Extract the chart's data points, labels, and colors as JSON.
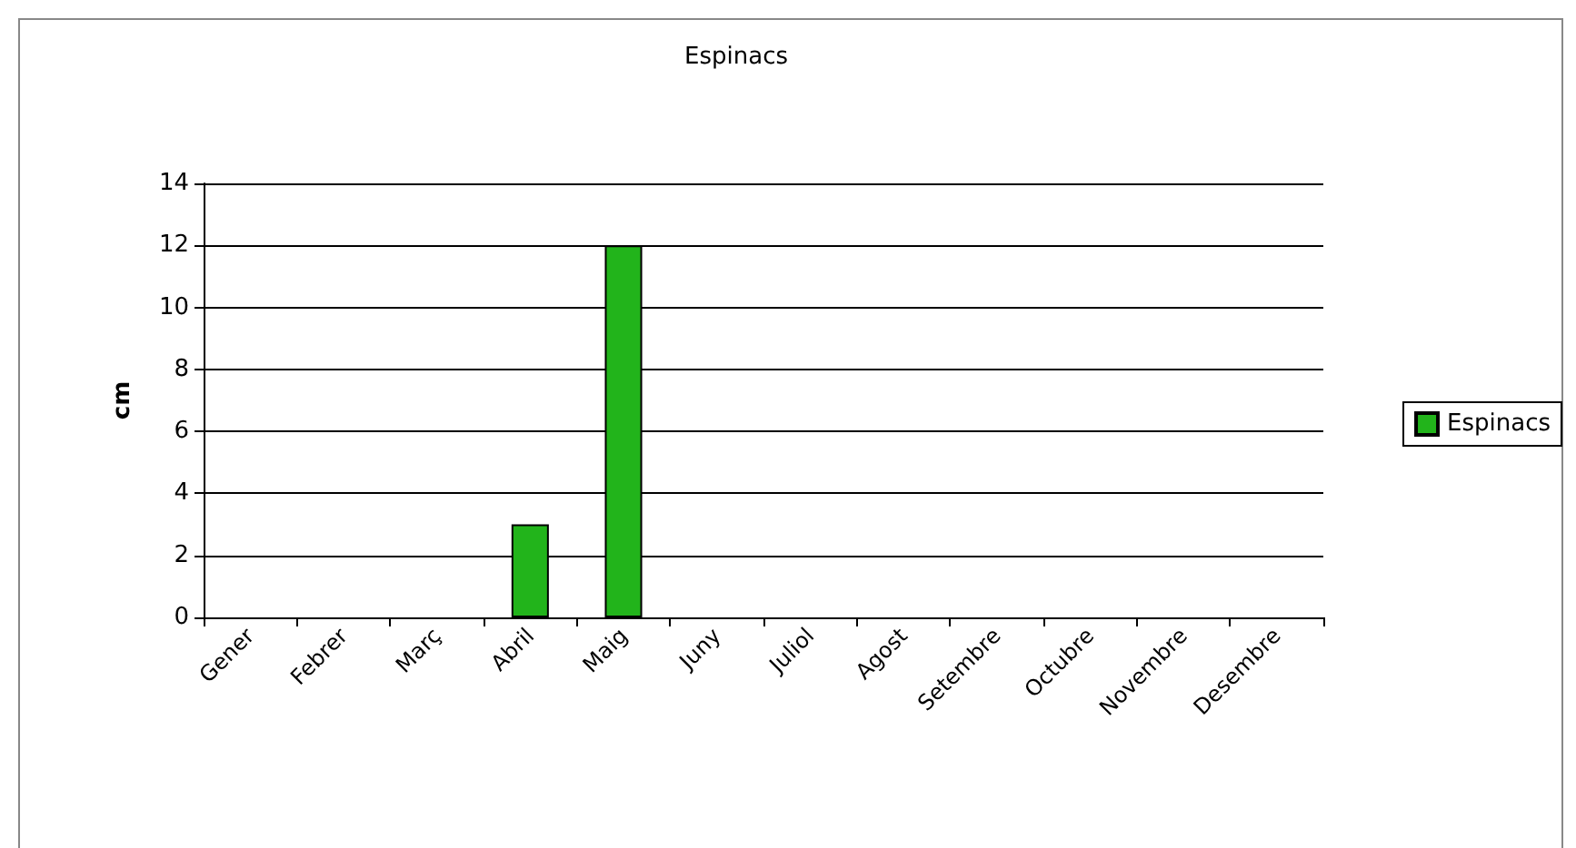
{
  "chart_data": {
    "type": "bar",
    "title": "Espinacs",
    "ylabel": "cm",
    "categories": [
      "Gener",
      "Febrer",
      "Març",
      "Abril",
      "Maig",
      "Juny",
      "Juliol",
      "Agost",
      "Setembre",
      "Octubre",
      "Novembre",
      "Desembre"
    ],
    "series": [
      {
        "name": "Espinacs",
        "color": "#22b41b",
        "values": [
          null,
          null,
          null,
          3,
          12,
          null,
          null,
          null,
          null,
          null,
          null,
          null
        ]
      }
    ],
    "ylim": [
      0,
      14
    ],
    "yticks": [
      0,
      2,
      4,
      6,
      8,
      10,
      12,
      14
    ],
    "grid": "y",
    "legend": "right"
  }
}
